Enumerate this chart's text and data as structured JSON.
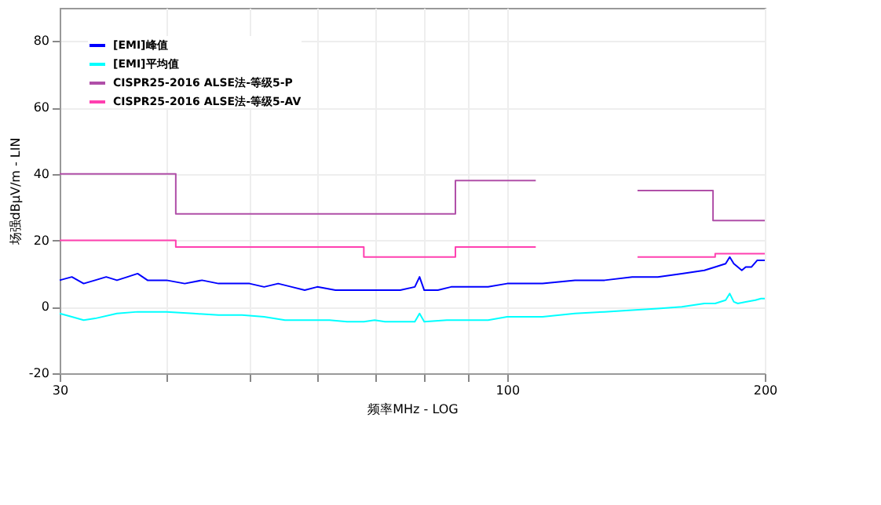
{
  "chart_data": {
    "type": "line",
    "xlabel": "频率MHz - LOG",
    "ylabel": "场强dBμV/m - LIN",
    "log": "x",
    "xlim": [
      30,
      200
    ],
    "xticks": [
      30,
      {
        "value": 40,
        "label": null
      },
      {
        "value": 50,
        "label": null
      },
      {
        "value": 60,
        "label": null
      },
      {
        "value": 70,
        "label": null
      },
      {
        "value": 80,
        "label": null
      },
      {
        "value": 90,
        "label": null
      },
      100,
      200
    ],
    "ylim": [
      -20,
      90
    ],
    "yticks": [
      -20,
      0,
      20,
      40,
      60,
      80
    ],
    "grid": true,
    "legend": "top left",
    "marker": "none",
    "line_style": "solid",
    "series": [
      {
        "name": "[EMI]峰值",
        "color": "#0000ff",
        "x": [
          30,
          31,
          32,
          33,
          34,
          35,
          36,
          37,
          38,
          40,
          42,
          44,
          46,
          48,
          50,
          52,
          54,
          56,
          58,
          60,
          63,
          66,
          69,
          72,
          75,
          78,
          79,
          80,
          83,
          86,
          90,
          95,
          100,
          105,
          110,
          120,
          130,
          140,
          150,
          160,
          170,
          175,
          180,
          182,
          184,
          186,
          188,
          190,
          193,
          196,
          200
        ],
        "values": [
          8,
          9,
          7,
          8,
          9,
          8,
          9,
          10,
          8,
          8,
          7,
          8,
          7,
          7,
          7,
          6,
          7,
          6,
          5,
          6,
          5,
          5,
          5,
          5,
          5,
          6,
          9,
          5,
          5,
          6,
          6,
          6,
          7,
          7,
          7,
          8,
          8,
          9,
          9,
          10,
          11,
          12,
          13,
          15,
          13,
          12,
          11,
          12,
          12,
          14,
          14
        ]
      },
      {
        "name": "[EMI]平均值",
        "color": "#00ffff",
        "x": [
          30,
          31,
          32,
          33,
          35,
          37,
          40,
          43,
          46,
          49,
          52,
          55,
          58,
          62,
          65,
          68,
          70,
          72,
          75,
          78,
          79,
          80,
          85,
          90,
          95,
          100,
          110,
          120,
          130,
          140,
          150,
          160,
          170,
          175,
          180,
          182,
          184,
          186,
          190,
          195,
          198,
          200
        ],
        "values": [
          -2,
          -3,
          -4,
          -3.5,
          -2,
          -1.5,
          -1.5,
          -2,
          -2.5,
          -2.5,
          -3,
          -4,
          -4,
          -4,
          -4.5,
          -4.5,
          -4,
          -4.5,
          -4.5,
          -4.5,
          -2,
          -4.5,
          -4,
          -4,
          -4,
          -3,
          -3,
          -2,
          -1.5,
          -1,
          -0.5,
          0,
          1,
          1,
          2,
          4,
          1.5,
          1,
          1.5,
          2,
          2.5,
          2.5
        ]
      },
      {
        "name": "CISPR25-2016 ALSE法-等级5-P",
        "color": "#b04fa8",
        "x": [
          30,
          41,
          41,
          87,
          87,
          108
        ],
        "values": [
          40,
          40,
          28,
          28,
          38,
          38
        ]
      },
      {
        "name": "CISPR25-2016 ALSE法-等级5-AV",
        "color": "#ff40b0",
        "x": [
          30,
          41,
          41,
          68,
          68,
          87,
          87,
          108
        ],
        "values": [
          20,
          20,
          18,
          18,
          15,
          15,
          18,
          18
        ]
      },
      {
        "color": "#b04fa8",
        "x": [
          142,
          174,
          174,
          200
        ],
        "values": [
          35,
          35,
          26,
          26
        ]
      },
      {
        "color": "#ff40b0",
        "x": [
          142,
          175,
          175,
          200
        ],
        "values": [
          15,
          15,
          16,
          16
        ]
      }
    ]
  }
}
